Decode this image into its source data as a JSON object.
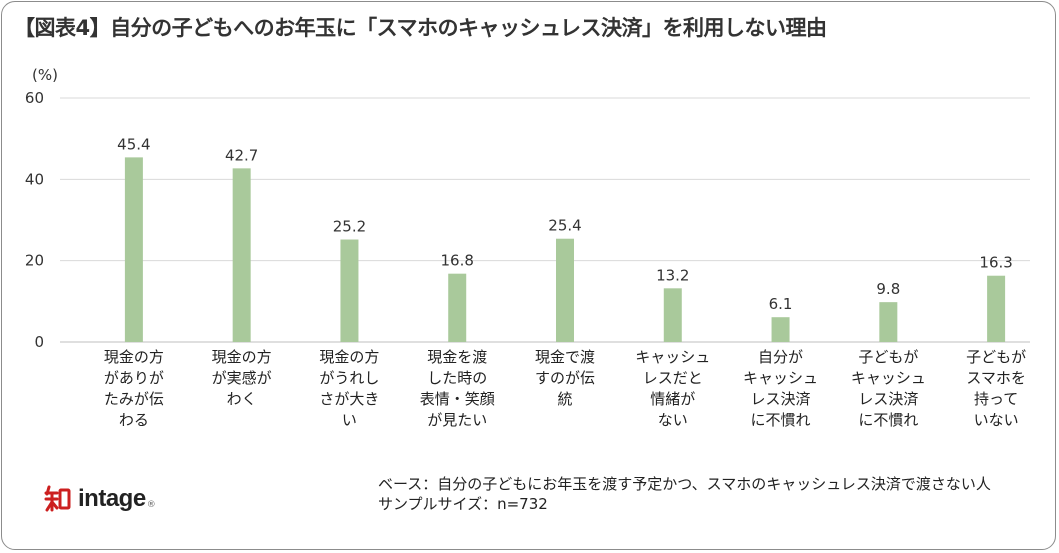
{
  "title": "【図表4】自分の子どもへのお年玉に「スマホのキャッシュレス決済」を利用しない理由",
  "chart_data": {
    "type": "bar",
    "title": "【図表4】自分の子どもへのお年玉に「スマホのキャッシュレス決済」を利用しない理由",
    "ylabel": "(%)",
    "xlabel": "",
    "ylim": [
      0,
      60
    ],
    "yticks": [
      0,
      20,
      40,
      60
    ],
    "grid": true,
    "bar_color": "#a9c99b",
    "grid_color": "#d9d9d9",
    "categories": [
      [
        "現金の方",
        "がありが",
        "たみが伝",
        "わる"
      ],
      [
        "現金の方",
        "が実感が",
        "わく"
      ],
      [
        "現金の方",
        "がうれし",
        "さが大き",
        "い"
      ],
      [
        "現金を渡",
        "した時の",
        "表情・笑顔",
        "が見たい"
      ],
      [
        "現金で渡",
        "すのが伝",
        "統"
      ],
      [
        "キャッシュ",
        "レスだと",
        "情緒が",
        "ない"
      ],
      [
        "自分が",
        "キャッシュ",
        "レス決済",
        "に不慣れ"
      ],
      [
        "子どもが",
        "キャッシュ",
        "レス決済",
        "に不慣れ"
      ],
      [
        "子どもが",
        "スマホを",
        "持って",
        "いない"
      ]
    ],
    "values": [
      45.4,
      42.7,
      25.2,
      16.8,
      25.4,
      13.2,
      6.1,
      9.8,
      16.3
    ],
    "value_labels": [
      "45.4",
      "42.7",
      "25.2",
      "16.8",
      "25.4",
      "13.2",
      "6.1",
      "9.8",
      "16.3"
    ]
  },
  "note": {
    "base": "ベース：自分の子どもにお年玉を渡す予定かつ、スマホのキャッシュレス決済で渡さない人",
    "sample": "サンプルサイズ：n=732"
  },
  "logo": {
    "text": "intage",
    "mark": "知",
    "registered": "®",
    "color": "#cc1f1f"
  }
}
